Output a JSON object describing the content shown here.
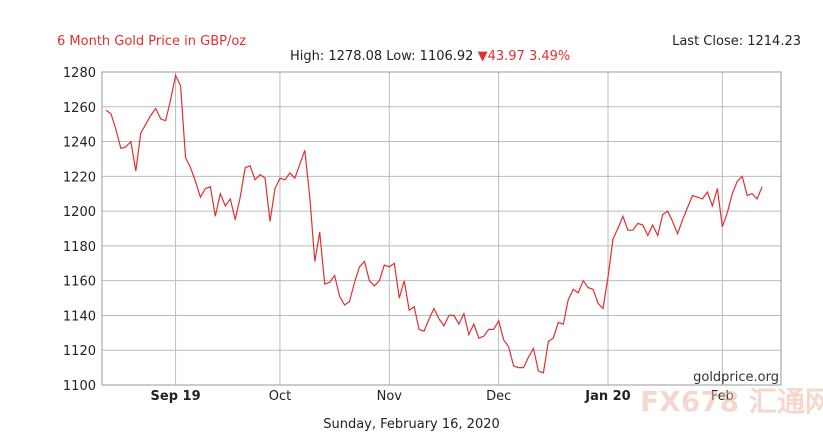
{
  "header": {
    "title": "6 Month Gold Price in GBP/oz",
    "last_close": "Last Close: 1214.23",
    "high_low": "High: 1278.08 Low: 1106.92",
    "change": "▼43.97 3.49%"
  },
  "footer": {
    "date": "Sunday, February 16, 2020"
  },
  "source_label": "goldprice.org",
  "watermark": "FX678 汇通网",
  "colors": {
    "line": "#e03030",
    "grid": "#bbbbbb"
  },
  "chart_data": {
    "type": "line",
    "title": "6 Month Gold Price in GBP/oz",
    "xlabel": "",
    "ylabel": "",
    "ylim": [
      1100,
      1280
    ],
    "y_ticks": [
      1100,
      1120,
      1140,
      1160,
      1180,
      1200,
      1220,
      1240,
      1260,
      1280
    ],
    "x_ticks": [
      {
        "label": "Sep 19",
        "bold": true,
        "at": 14
      },
      {
        "label": "Oct",
        "bold": false,
        "at": 35
      },
      {
        "label": "Nov",
        "bold": false,
        "at": 57
      },
      {
        "label": "Dec",
        "bold": false,
        "at": 79
      },
      {
        "label": "Jan 20",
        "bold": true,
        "at": 101
      },
      {
        "label": "Feb",
        "bold": false,
        "at": 124
      }
    ],
    "x_count": 136,
    "grid": true,
    "series": [
      {
        "values": [
          1258,
          1256,
          1247,
          1236,
          1237,
          1240,
          1223,
          1245,
          1250,
          1255,
          1259,
          1253,
          1252,
          1264,
          1278,
          1272,
          1231,
          1225,
          1217,
          1208,
          1213,
          1214,
          1197,
          1210,
          1203,
          1207,
          1195,
          1208,
          1225,
          1226,
          1218,
          1221,
          1219,
          1194,
          1213,
          1219,
          1218,
          1222,
          1219,
          1227,
          1235,
          1208,
          1171,
          1188,
          1158,
          1159,
          1163,
          1151,
          1146,
          1148,
          1159,
          1168,
          1171,
          1160,
          1157,
          1160,
          1169,
          1168,
          1170,
          1150,
          1160,
          1143,
          1145,
          1132,
          1131,
          1138,
          1144,
          1138,
          1134,
          1140,
          1140,
          1135,
          1141,
          1129,
          1135,
          1127,
          1128,
          1132,
          1132,
          1137,
          1126,
          1122,
          1111,
          1110,
          1110,
          1116,
          1121,
          1108,
          1107,
          1125,
          1127,
          1136,
          1135,
          1149,
          1155,
          1153,
          1160,
          1156,
          1155,
          1147,
          1144,
          1162,
          1184,
          1190,
          1197,
          1189,
          1189,
          1193,
          1192,
          1186,
          1192,
          1186,
          1198,
          1200,
          1194,
          1187,
          1195,
          1202,
          1209,
          1208,
          1207,
          1211,
          1203,
          1213,
          1191,
          1199,
          1210,
          1217,
          1220,
          1209,
          1210,
          1207,
          1214
        ]
      }
    ]
  }
}
